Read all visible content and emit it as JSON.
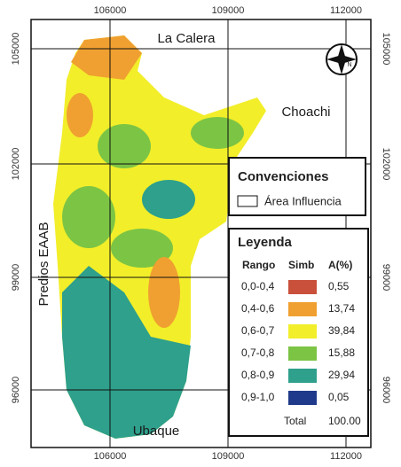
{
  "map": {
    "x_ticks": [
      "106000",
      "109000",
      "112000"
    ],
    "y_ticks": [
      "105000",
      "102000",
      "99000",
      "96000"
    ],
    "places": [
      "La Calera",
      "Choachi",
      "Predios EAAB",
      "Ubaque"
    ],
    "north": "N"
  },
  "conventions": {
    "title": "Convenciones",
    "items": [
      "Área Influencia"
    ]
  },
  "legend": {
    "title": "Leyenda",
    "headers": [
      "Rango",
      "Simb",
      "A(%)"
    ],
    "rows": [
      {
        "range": "0,0-0,4",
        "color": "#c9503a",
        "area": "0,55"
      },
      {
        "range": "0,4-0,6",
        "color": "#f0a030",
        "area": "13,74"
      },
      {
        "range": "0,6-0,7",
        "color": "#f2ee2a",
        "area": "39,84"
      },
      {
        "range": "0,7-0,8",
        "color": "#7cc444",
        "area": "15,88"
      },
      {
        "range": "0,8-0,9",
        "color": "#2ea08c",
        "area": "29,94"
      },
      {
        "range": "0,9-1,0",
        "color": "#1f3a8a",
        "area": "0,05"
      }
    ],
    "total_label": "Total",
    "total": "100.00"
  }
}
